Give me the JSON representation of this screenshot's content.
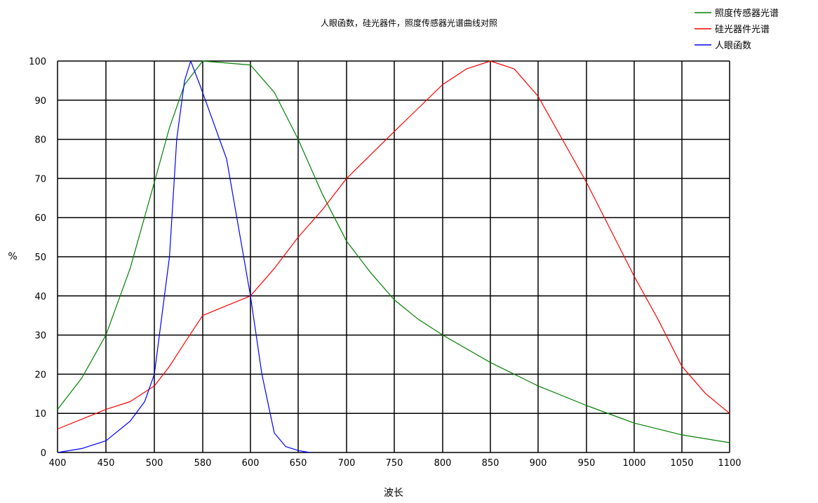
{
  "chart_data": {
    "type": "line",
    "title": "人眼函数，硅光器件，照度传感器光谱曲线对照",
    "xlabel": "波长",
    "ylabel": "%",
    "x_tick_labels": [
      "400",
      "450",
      "500",
      "580",
      "600",
      "650",
      "700",
      "750",
      "800",
      "850",
      "900",
      "950",
      "1000",
      "1050",
      "1100"
    ],
    "y_ticks": [
      0,
      10,
      20,
      30,
      40,
      50,
      60,
      70,
      80,
      90,
      100
    ],
    "ylim": [
      0,
      100
    ],
    "grid": true,
    "legend_position": "top-right",
    "series": [
      {
        "name": "照度传感器光谱",
        "color": "#008000",
        "points": [
          [
            400,
            11
          ],
          [
            425,
            19
          ],
          [
            450,
            30
          ],
          [
            475,
            47
          ],
          [
            500,
            69
          ],
          [
            525,
            83
          ],
          [
            550,
            94
          ],
          [
            580,
            100
          ],
          [
            600,
            99
          ],
          [
            625,
            92
          ],
          [
            650,
            80
          ],
          [
            675,
            66
          ],
          [
            700,
            54
          ],
          [
            725,
            46
          ],
          [
            750,
            39
          ],
          [
            775,
            34
          ],
          [
            800,
            30
          ],
          [
            850,
            23
          ],
          [
            900,
            17
          ],
          [
            950,
            12
          ],
          [
            1000,
            7.5
          ],
          [
            1050,
            4.5
          ],
          [
            1100,
            2.5
          ]
        ]
      },
      {
        "name": "硅光器件光谱",
        "color": "#ff0000",
        "points": [
          [
            400,
            6
          ],
          [
            425,
            8.5
          ],
          [
            450,
            11
          ],
          [
            475,
            13
          ],
          [
            500,
            17
          ],
          [
            525,
            22
          ],
          [
            550,
            28
          ],
          [
            580,
            35
          ],
          [
            600,
            40
          ],
          [
            625,
            47
          ],
          [
            650,
            55
          ],
          [
            675,
            62
          ],
          [
            700,
            70
          ],
          [
            725,
            76
          ],
          [
            750,
            82
          ],
          [
            775,
            88
          ],
          [
            800,
            94
          ],
          [
            825,
            98
          ],
          [
            850,
            100
          ],
          [
            875,
            98
          ],
          [
            900,
            91
          ],
          [
            925,
            80
          ],
          [
            950,
            69
          ],
          [
            975,
            57
          ],
          [
            1000,
            45
          ],
          [
            1025,
            34
          ],
          [
            1050,
            22
          ],
          [
            1075,
            15
          ],
          [
            1100,
            10
          ]
        ]
      },
      {
        "name": "人眼函数",
        "color": "#0000ff",
        "points": [
          [
            400,
            0
          ],
          [
            425,
            1
          ],
          [
            450,
            3
          ],
          [
            475,
            8
          ],
          [
            490,
            13
          ],
          [
            500,
            20
          ],
          [
            525,
            50
          ],
          [
            537,
            80
          ],
          [
            550,
            95
          ],
          [
            560,
            100
          ],
          [
            575,
            94
          ],
          [
            590,
            75
          ],
          [
            600,
            40
          ],
          [
            612,
            20
          ],
          [
            625,
            5
          ],
          [
            637,
            1.5
          ],
          [
            650,
            0.5
          ],
          [
            662,
            0
          ]
        ]
      }
    ]
  }
}
